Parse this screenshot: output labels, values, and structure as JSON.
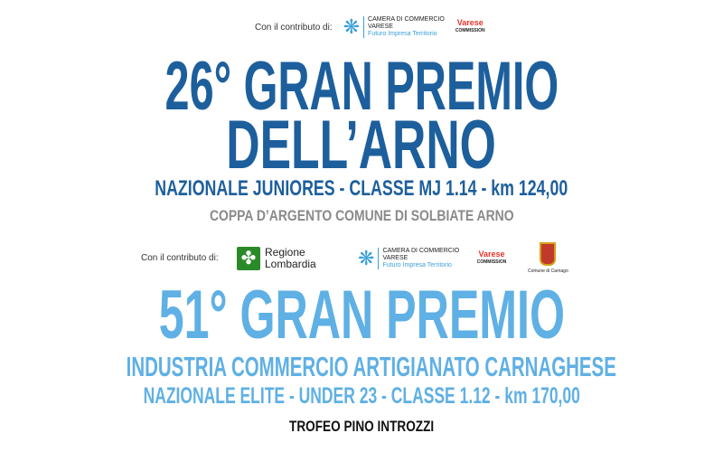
{
  "top_sponsors": {
    "label": "Con il contributo di:",
    "chamber": {
      "line1": "CAMERA DI COMMERCIO",
      "line2": "VARESE",
      "line3": "Futuro Impresa Territorio"
    },
    "varese_sport": {
      "name": "Varese",
      "sub": "COMMISSION"
    }
  },
  "race1": {
    "title_line1": "26° GRAN PREMIO",
    "title_line2": "DELL’ARNO",
    "category": "NAZIONALE JUNIORES - CLASSE MJ 1.14 - km 124,00",
    "trophy": "COPPA D’ARGENTO COMUNE DI SOLBIATE ARNO"
  },
  "middle_sponsors": {
    "label": "Con il contributo di:",
    "region": {
      "line1": "Regione",
      "line2": "Lombardia"
    },
    "chamber": {
      "line1": "CAMERA DI COMMERCIO",
      "line2": "VARESE",
      "line3": "Futuro Impresa Territorio"
    },
    "varese_sport": {
      "name": "Varese",
      "sub": "COMMISSION"
    },
    "municipality": "Comune di Carnago"
  },
  "race2": {
    "title": "51° GRAN PREMIO",
    "subtitle": "INDUSTRIA COMMERCIO ARTIGIANATO CARNAGHESE",
    "category": "NAZIONALE ELITE - UNDER 23 - CLASSE 1.12 - km 170,00",
    "trophy": "TROFEO PINO INTROZZI"
  },
  "colors": {
    "dark_blue": "#1d5f9c",
    "light_blue": "#5fb0e4",
    "gray": "#8a8a8a"
  }
}
